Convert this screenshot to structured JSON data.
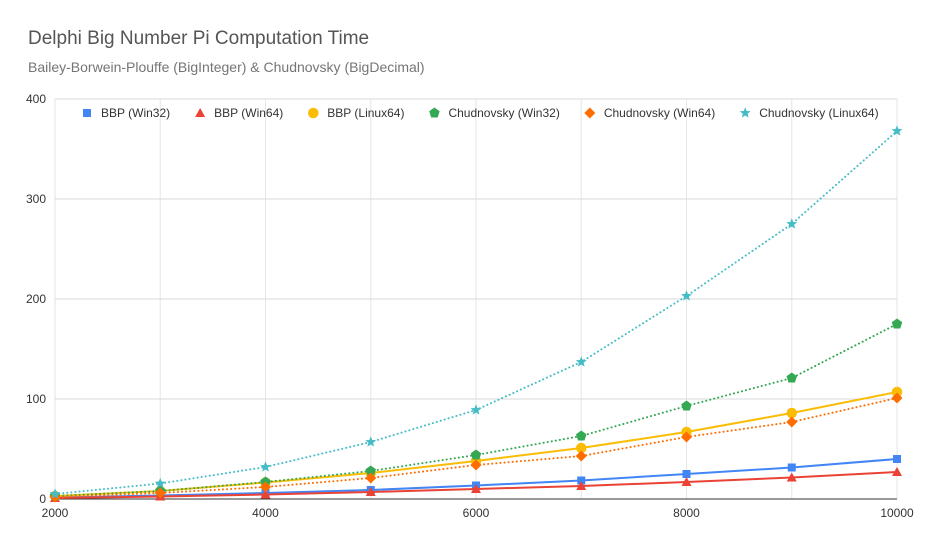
{
  "chart_data": {
    "type": "line",
    "title": "Delphi Big Number Pi Computation Time",
    "subtitle": "Bailey-Borwein-Plouffe (BigInteger) & Chudnovsky (BigDecimal)",
    "xlabel": "",
    "ylabel": "",
    "x": [
      2000,
      3000,
      4000,
      5000,
      6000,
      7000,
      8000,
      9000,
      10000
    ],
    "xlim": [
      2000,
      10000
    ],
    "ylim": [
      0,
      400
    ],
    "x_ticks": [
      2000,
      4000,
      6000,
      8000,
      10000
    ],
    "y_ticks": [
      0,
      100,
      200,
      300,
      400
    ],
    "grid": true,
    "legend_position": "top",
    "series": [
      {
        "name": "BBP (Win32)",
        "color": "#4285f4",
        "marker": "square",
        "line": "solid",
        "values": [
          1.5,
          3.5,
          6,
          9,
          13.5,
          18.5,
          25,
          31.5,
          40
        ]
      },
      {
        "name": "BBP (Win64)",
        "color": "#ea4335",
        "marker": "triangle",
        "line": "solid",
        "values": [
          1,
          2.5,
          4.5,
          7,
          10,
          13,
          17,
          21.5,
          27
        ]
      },
      {
        "name": "BBP (Linux64)",
        "color": "#fbbc04",
        "marker": "circle",
        "line": "solid",
        "values": [
          3,
          8,
          16.5,
          26,
          38,
          51,
          67,
          86,
          107
        ]
      },
      {
        "name": "Chudnovsky (Win32)",
        "color": "#34a853",
        "marker": "pentagon",
        "line": "dotted",
        "values": [
          3,
          8,
          17,
          28,
          44,
          63,
          93,
          121,
          175
        ]
      },
      {
        "name": "Chudnovsky (Win64)",
        "color": "#ff6d01",
        "marker": "diamond",
        "line": "dotted",
        "values": [
          2,
          6,
          12,
          21,
          34,
          43,
          62,
          77,
          101
        ]
      },
      {
        "name": "Chudnovsky (Linux64)",
        "color": "#46bdc6",
        "marker": "star",
        "line": "dotted",
        "values": [
          5,
          15.5,
          32,
          57,
          89,
          137,
          203,
          275,
          368
        ]
      }
    ]
  }
}
